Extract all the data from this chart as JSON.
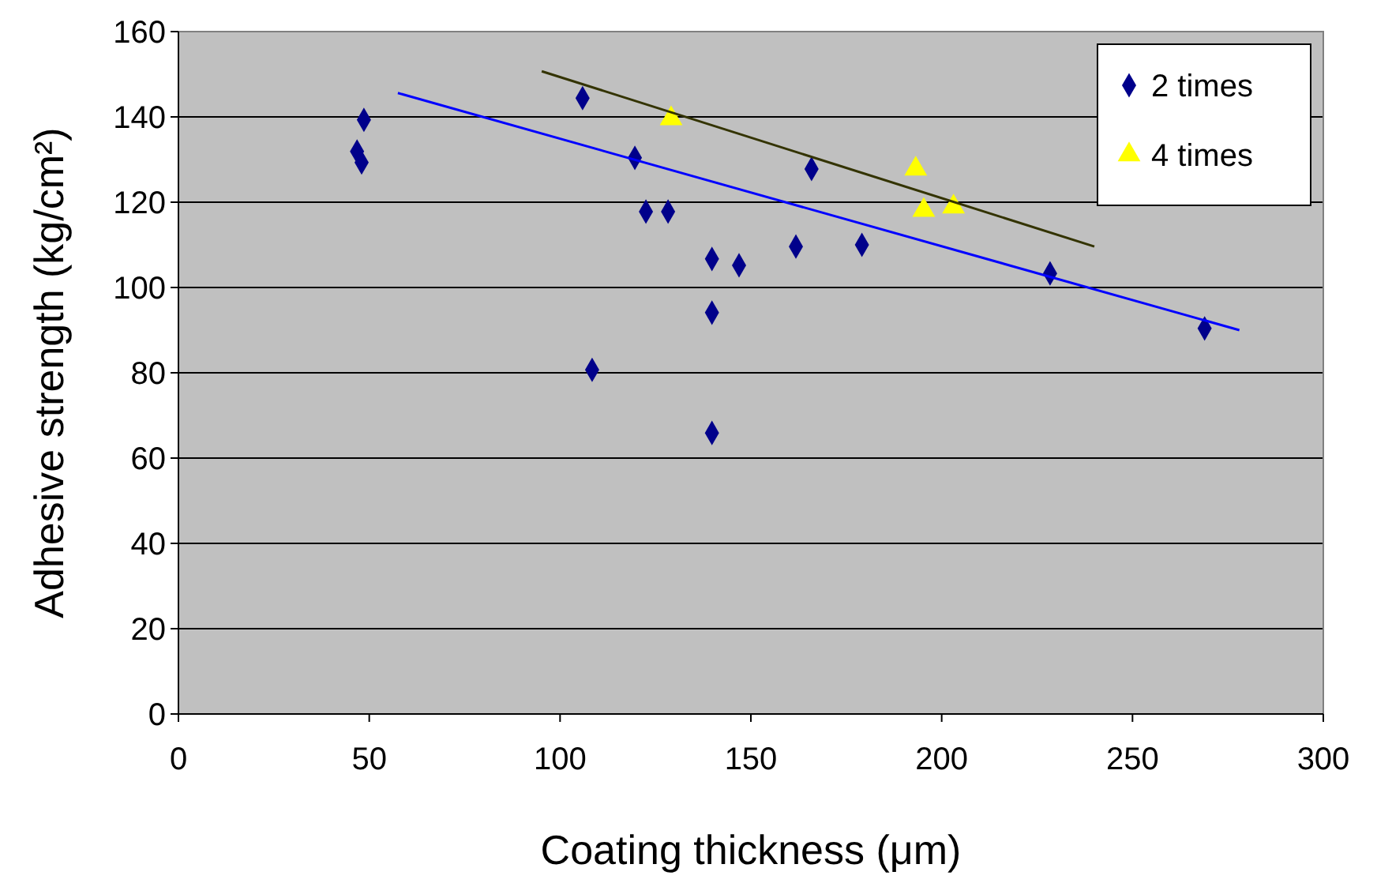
{
  "chart_data": {
    "type": "scatter",
    "xlabel": "Coating thickness (μm)",
    "ylabel": "Adhesive strength (kg/cm²)",
    "xlim": [
      0,
      300
    ],
    "xticks": [
      0,
      50,
      100,
      150,
      200,
      250,
      300
    ],
    "ylim": [
      0,
      160
    ],
    "yticks": [
      0,
      20,
      40,
      60,
      80,
      100,
      120,
      140,
      160
    ],
    "grid": "y",
    "legend": "top right",
    "series": [
      {
        "name": "2 times",
        "color": "#00008b",
        "marker": "diamond",
        "x": [
          46.8,
          48,
          48.6,
          105.9,
          119.6,
          108.4,
          122.5,
          128.3,
          139.8,
          146.9,
          139.8,
          139.8,
          161.8,
          165.9,
          179.1,
          228.4,
          268.9
        ],
        "values": [
          131.9,
          129.3,
          139.3,
          144.4,
          130.4,
          80.7,
          117.8,
          117.8,
          106.7,
          105.2,
          94.1,
          65.9,
          109.6,
          127.8,
          110,
          103.3,
          90.4
        ]
      },
      {
        "name": "4 times",
        "color": "#ffff00",
        "marker": "triangle",
        "x": [
          129.1,
          193.2,
          195.3,
          203.1
        ],
        "values": [
          139.6,
          127.8,
          118.1,
          118.9
        ]
      },
      {
        "type": "line",
        "color": "#0000ff",
        "marker": "none",
        "x": [
          57.5,
          278
        ],
        "values": [
          145.6,
          90
        ]
      },
      {
        "type": "line",
        "color": "#333300",
        "marker": "none",
        "x": [
          95.2,
          240
        ],
        "values": [
          150.7,
          109.6
        ]
      }
    ]
  }
}
